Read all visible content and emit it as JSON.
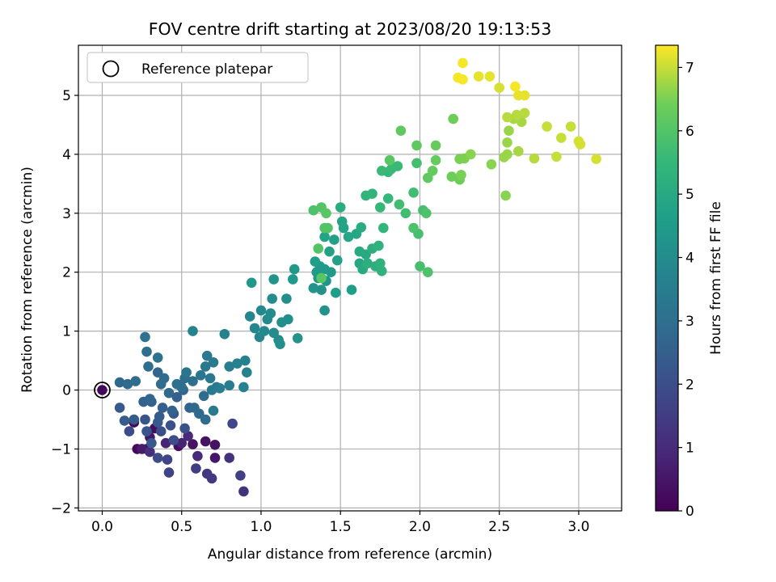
{
  "chart_data": {
    "type": "scatter",
    "title": "FOV centre drift starting at 2023/08/20 19:13:53",
    "xlabel": "Angular distance from reference (arcmin)",
    "ylabel": "Rotation from reference (arcmin)",
    "xlim": [
      -0.15,
      3.27
    ],
    "ylim": [
      -2.05,
      5.85
    ],
    "xticks": [
      0.0,
      0.5,
      1.0,
      1.5,
      2.0,
      2.5,
      3.0
    ],
    "xtick_labels": [
      "0.0",
      "0.5",
      "1.0",
      "1.5",
      "2.0",
      "2.5",
      "3.0"
    ],
    "yticks": [
      -2,
      -1,
      0,
      1,
      2,
      3,
      4,
      5
    ],
    "ytick_labels": [
      "−2",
      "−1",
      "0",
      "1",
      "2",
      "3",
      "4",
      "5"
    ],
    "grid": true,
    "colormap": "viridis",
    "colorbar": {
      "label": "Hours from first FF file",
      "range": [
        0,
        7.35
      ],
      "ticks": [
        0,
        1,
        2,
        3,
        4,
        5,
        6,
        7
      ],
      "tick_labels": [
        "0",
        "1",
        "2",
        "3",
        "4",
        "5",
        "6",
        "7"
      ]
    },
    "legend": {
      "position": "top-left",
      "entries": [
        {
          "label": "Reference platepar",
          "marker": "hollow-circle"
        }
      ]
    },
    "reference_point": [
      0.0,
      0.0
    ],
    "points_columns": [
      "x_arcmin",
      "y_arcmin",
      "hours"
    ],
    "points": [
      [
        0.2,
        -0.55,
        0.2
      ],
      [
        0.22,
        -1.0,
        0.2
      ],
      [
        0.28,
        -1.0,
        0.3
      ],
      [
        0.33,
        -0.65,
        0.3
      ],
      [
        0.48,
        -0.95,
        0.3
      ],
      [
        0.57,
        -0.92,
        0.4
      ],
      [
        0.65,
        -0.87,
        0.4
      ],
      [
        0.71,
        -0.93,
        0.4
      ],
      [
        0.71,
        -1.15,
        0.5
      ],
      [
        0.3,
        -0.8,
        0.5
      ],
      [
        0.25,
        -1.0,
        0.6
      ],
      [
        0.4,
        -0.9,
        0.8
      ],
      [
        0.5,
        -0.9,
        0.8
      ],
      [
        0.54,
        -0.78,
        1.0
      ],
      [
        0.6,
        -1.12,
        1.0
      ],
      [
        0.3,
        -1.05,
        1.1
      ],
      [
        0.8,
        -1.15,
        1.2
      ],
      [
        0.89,
        -1.72,
        1.2
      ],
      [
        0.66,
        -1.42,
        1.4
      ],
      [
        0.69,
        -1.5,
        1.4
      ],
      [
        0.59,
        -1.33,
        1.5
      ],
      [
        0.87,
        -1.45,
        1.6
      ],
      [
        0.42,
        -1.4,
        1.7
      ],
      [
        0.41,
        -1.18,
        1.7
      ],
      [
        0.82,
        -0.57,
        1.8
      ],
      [
        0.35,
        -1.15,
        1.9
      ],
      [
        0.17,
        -0.7,
        1.9
      ],
      [
        0.37,
        -0.7,
        2.0
      ],
      [
        0.45,
        -0.85,
        2.0
      ],
      [
        0.52,
        -0.65,
        2.1
      ],
      [
        0.43,
        -0.6,
        2.1
      ],
      [
        0.45,
        -0.4,
        2.2
      ],
      [
        0.27,
        -0.5,
        2.2
      ],
      [
        0.28,
        -0.7,
        2.2
      ],
      [
        0.31,
        -0.9,
        2.3
      ],
      [
        0.35,
        -0.55,
        2.3
      ],
      [
        0.11,
        -0.3,
        2.3
      ],
      [
        0.14,
        -0.52,
        2.4
      ],
      [
        0.2,
        -0.5,
        2.4
      ],
      [
        0.36,
        -0.45,
        2.4
      ],
      [
        0.38,
        -0.3,
        2.5
      ],
      [
        0.31,
        -0.2,
        2.5
      ],
      [
        0.47,
        -0.12,
        2.5
      ],
      [
        0.55,
        -0.3,
        2.6
      ],
      [
        0.26,
        -0.2,
        2.6
      ],
      [
        0.44,
        -0.35,
        2.6
      ],
      [
        0.3,
        -0.15,
        2.7
      ],
      [
        0.51,
        0.0,
        2.7
      ],
      [
        0.35,
        0.3,
        2.7
      ],
      [
        0.42,
        -0.05,
        2.8
      ],
      [
        0.58,
        -0.3,
        2.8
      ],
      [
        0.61,
        -0.4,
        2.8
      ],
      [
        0.65,
        -0.5,
        2.9
      ],
      [
        0.64,
        -0.1,
        2.9
      ],
      [
        0.37,
        0.1,
        2.9
      ],
      [
        0.39,
        0.2,
        2.9
      ],
      [
        0.47,
        0.1,
        3.0
      ],
      [
        0.5,
        0.05,
        3.0
      ],
      [
        0.52,
        0.2,
        3.0
      ],
      [
        0.57,
        0.15,
        3.0
      ],
      [
        0.11,
        0.13,
        2.8
      ],
      [
        0.16,
        0.1,
        2.8
      ],
      [
        0.21,
        0.15,
        2.9
      ],
      [
        0.29,
        0.4,
        3.0
      ],
      [
        0.28,
        0.65,
        3.0
      ],
      [
        0.27,
        0.9,
        3.1
      ],
      [
        0.35,
        0.55,
        3.1
      ],
      [
        0.53,
        0.3,
        3.2
      ],
      [
        0.62,
        0.25,
        3.2
      ],
      [
        0.65,
        0.4,
        3.3
      ],
      [
        0.66,
        0.58,
        3.3
      ],
      [
        0.68,
        0.2,
        3.3
      ],
      [
        0.69,
        0.0,
        3.4
      ],
      [
        0.7,
        -0.35,
        3.4
      ],
      [
        0.72,
        0.05,
        3.4
      ],
      [
        0.7,
        0.47,
        3.4
      ],
      [
        0.74,
        0.03,
        3.5
      ],
      [
        0.8,
        0.08,
        3.5
      ],
      [
        0.8,
        0.4,
        3.5
      ],
      [
        0.85,
        0.45,
        3.6
      ],
      [
        0.89,
        0.05,
        3.6
      ],
      [
        0.9,
        0.5,
        3.6
      ],
      [
        0.91,
        0.3,
        3.7
      ],
      [
        0.57,
        1.0,
        3.7
      ],
      [
        0.77,
        0.95,
        3.7
      ],
      [
        0.93,
        1.25,
        3.8
      ],
      [
        0.96,
        1.05,
        3.8
      ],
      [
        0.99,
        0.9,
        3.8
      ],
      [
        1.0,
        1.35,
        3.9
      ],
      [
        1.02,
        1.0,
        3.9
      ],
      [
        1.04,
        1.2,
        3.9
      ],
      [
        1.06,
        1.3,
        4.0
      ],
      [
        1.07,
        1.55,
        4.0
      ],
      [
        1.08,
        0.97,
        4.0
      ],
      [
        1.11,
        0.85,
        4.0
      ],
      [
        1.12,
        0.78,
        4.1
      ],
      [
        1.13,
        1.15,
        4.1
      ],
      [
        1.16,
        1.55,
        4.1
      ],
      [
        1.17,
        1.2,
        4.1
      ],
      [
        1.23,
        0.88,
        4.2
      ],
      [
        1.4,
        1.35,
        4.2
      ],
      [
        1.38,
        1.7,
        4.2
      ],
      [
        1.33,
        1.73,
        4.3
      ],
      [
        1.36,
        1.9,
        4.3
      ],
      [
        1.41,
        1.85,
        4.3
      ],
      [
        1.08,
        1.88,
        4.3
      ],
      [
        0.94,
        1.82,
        4.4
      ],
      [
        1.2,
        1.88,
        4.4
      ],
      [
        1.21,
        2.05,
        4.4
      ],
      [
        1.35,
        2.0,
        4.5
      ],
      [
        1.37,
        2.1,
        4.5
      ],
      [
        1.4,
        2.05,
        4.5
      ],
      [
        1.44,
        2.0,
        4.5
      ],
      [
        1.47,
        1.65,
        4.6
      ],
      [
        1.57,
        1.7,
        4.6
      ],
      [
        1.34,
        2.18,
        4.6
      ],
      [
        1.43,
        2.35,
        4.7
      ],
      [
        1.46,
        2.55,
        4.7
      ],
      [
        1.48,
        2.2,
        4.7
      ],
      [
        1.4,
        2.6,
        4.8
      ],
      [
        1.51,
        2.86,
        4.8
      ],
      [
        1.52,
        2.75,
        4.8
      ],
      [
        1.55,
        2.6,
        4.9
      ],
      [
        1.6,
        2.65,
        4.9
      ],
      [
        1.62,
        2.15,
        4.9
      ],
      [
        1.62,
        2.35,
        5.0
      ],
      [
        1.64,
        2.05,
        5.0
      ],
      [
        1.66,
        2.3,
        5.0
      ],
      [
        1.63,
        2.76,
        5.1
      ],
      [
        1.5,
        3.1,
        5.1
      ],
      [
        1.67,
        2.15,
        5.2
      ],
      [
        1.7,
        2.4,
        5.2
      ],
      [
        1.72,
        2.1,
        5.2
      ],
      [
        1.74,
        2.45,
        5.3
      ],
      [
        1.76,
        2.02,
        5.3
      ],
      [
        1.75,
        2.15,
        5.3
      ],
      [
        1.77,
        2.75,
        5.4
      ],
      [
        1.66,
        3.3,
        5.4
      ],
      [
        1.7,
        3.33,
        5.4
      ],
      [
        1.75,
        3.1,
        5.5
      ],
      [
        1.8,
        3.25,
        5.5
      ],
      [
        1.8,
        3.7,
        5.5
      ],
      [
        1.76,
        3.72,
        5.6
      ],
      [
        1.82,
        3.75,
        5.6
      ],
      [
        1.86,
        3.8,
        5.6
      ],
      [
        1.87,
        3.15,
        5.7
      ],
      [
        1.91,
        3.0,
        5.7
      ],
      [
        1.96,
        3.35,
        5.7
      ],
      [
        1.98,
        3.85,
        5.8
      ],
      [
        1.99,
        2.65,
        5.8
      ],
      [
        2.0,
        2.1,
        5.8
      ],
      [
        2.02,
        3.05,
        5.8
      ],
      [
        2.04,
        3.0,
        5.9
      ],
      [
        2.05,
        2.0,
        5.9
      ],
      [
        1.96,
        2.75,
        5.9
      ],
      [
        1.33,
        3.05,
        5.9
      ],
      [
        1.38,
        3.1,
        6.0
      ],
      [
        1.4,
        2.75,
        6.0
      ],
      [
        1.42,
        2.75,
        6.0
      ],
      [
        1.36,
        2.4,
        6.0
      ],
      [
        1.38,
        1.9,
        6.1
      ],
      [
        1.41,
        3.0,
        6.1
      ],
      [
        1.81,
        3.9,
        6.1
      ],
      [
        1.88,
        4.4,
        6.2
      ],
      [
        1.98,
        4.15,
        6.2
      ],
      [
        2.05,
        3.6,
        6.2
      ],
      [
        2.1,
        3.9,
        6.3
      ],
      [
        2.1,
        4.15,
        6.3
      ],
      [
        2.08,
        3.72,
        6.3
      ],
      [
        2.2,
        3.62,
        6.4
      ],
      [
        2.21,
        4.6,
        6.4
      ],
      [
        2.25,
        3.57,
        6.4
      ],
      [
        2.25,
        3.92,
        6.5
      ],
      [
        2.26,
        3.65,
        6.5
      ],
      [
        2.28,
        3.93,
        6.5
      ],
      [
        2.32,
        4.0,
        6.6
      ],
      [
        2.45,
        3.83,
        6.6
      ],
      [
        2.54,
        3.3,
        6.6
      ],
      [
        2.53,
        3.95,
        6.7
      ],
      [
        2.55,
        4.0,
        6.7
      ],
      [
        2.55,
        4.2,
        6.7
      ],
      [
        2.56,
        4.4,
        6.7
      ],
      [
        2.59,
        4.6,
        6.8
      ],
      [
        2.62,
        4.05,
        6.8
      ],
      [
        2.64,
        4.55,
        6.8
      ],
      [
        2.66,
        4.7,
        6.9
      ],
      [
        2.72,
        3.93,
        6.9
      ],
      [
        2.55,
        4.63,
        6.9
      ],
      [
        2.61,
        4.67,
        6.9
      ],
      [
        2.8,
        4.47,
        7.0
      ],
      [
        2.86,
        3.96,
        7.0
      ],
      [
        2.89,
        4.28,
        7.0
      ],
      [
        2.95,
        4.47,
        7.0
      ],
      [
        3.0,
        4.22,
        7.1
      ],
      [
        3.01,
        4.17,
        7.1
      ],
      [
        3.11,
        3.92,
        7.1
      ],
      [
        2.5,
        5.13,
        7.1
      ],
      [
        2.62,
        5.0,
        7.2
      ],
      [
        2.66,
        5.0,
        7.2
      ],
      [
        2.44,
        5.32,
        7.2
      ],
      [
        2.37,
        5.32,
        7.2
      ],
      [
        2.24,
        5.3,
        7.3
      ],
      [
        2.27,
        5.55,
        7.3
      ],
      [
        2.27,
        5.27,
        7.3
      ],
      [
        2.6,
        5.15,
        7.3
      ]
    ]
  }
}
